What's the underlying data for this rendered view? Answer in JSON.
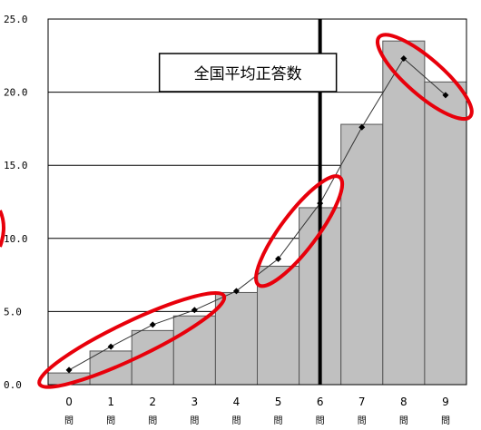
{
  "chart_data": {
    "type": "bar",
    "categories": [
      "0",
      "1",
      "2",
      "3",
      "4",
      "5",
      "6",
      "7",
      "8",
      "9"
    ],
    "category_unit": "問",
    "series": [
      {
        "values": [
          0.8,
          2.3,
          3.7,
          4.7,
          6.3,
          8.1,
          12.1,
          17.8,
          23.5,
          20.7
        ]
      },
      {
        "values": [
          1.0,
          2.6,
          4.1,
          5.1,
          6.4,
          8.6,
          12.4,
          17.6,
          22.3,
          19.8
        ]
      }
    ],
    "ylim": [
      0,
      25
    ],
    "yticks": [
      "0.0",
      "5.0",
      "10.0",
      "15.0",
      "20.0",
      "25.0"
    ],
    "grid": "horizontal",
    "annotation": {
      "text": "全国平均正答数",
      "at_category": "6"
    },
    "bar_color": "#c0c0c0",
    "line_color": "#000000",
    "highlight_color": "#e8000b",
    "highlights": [
      {
        "from_category": "0",
        "to_category": "3"
      },
      {
        "from_category": "5",
        "to_category": "6"
      },
      {
        "from_category": "8",
        "to_category": "9"
      }
    ]
  }
}
